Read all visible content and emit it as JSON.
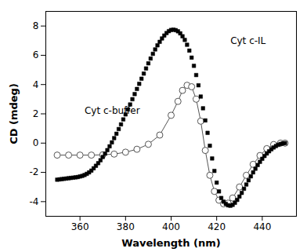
{
  "chart_data": {
    "type": "line",
    "xlabel": "Wavelength (nm)",
    "ylabel": "CD (mdeg)",
    "xlim": [
      345,
      455
    ],
    "ylim": [
      -5,
      9
    ],
    "xticks": [
      360,
      380,
      400,
      420,
      440
    ],
    "yticks": [
      -4,
      -2,
      0,
      2,
      4,
      6,
      8
    ],
    "grid": false,
    "series": [
      {
        "name": "Cyt c-IL",
        "type": "scatter",
        "color": "#000000",
        "marker": "square",
        "line_style": "none",
        "x": [
          350,
          351,
          352,
          353,
          354,
          355,
          356,
          357,
          358,
          359,
          360,
          361,
          362,
          363,
          364,
          365,
          366,
          367,
          368,
          369,
          370,
          371,
          372,
          373,
          374,
          375,
          376,
          377,
          378,
          379,
          380,
          381,
          382,
          383,
          384,
          385,
          386,
          387,
          388,
          389,
          390,
          391,
          392,
          393,
          394,
          395,
          396,
          397,
          398,
          399,
          400,
          401,
          402,
          403,
          404,
          405,
          406,
          407,
          408,
          409,
          410,
          411,
          412,
          413,
          414,
          415,
          416,
          417,
          418,
          419,
          420,
          421,
          422,
          423,
          424,
          425,
          426,
          427,
          428,
          429,
          430,
          431,
          432,
          433,
          434,
          435,
          436,
          437,
          438,
          439,
          440,
          441,
          442,
          443,
          444,
          445,
          446,
          447,
          448,
          449,
          450
        ],
        "values": [
          -2.5,
          -2.48,
          -2.46,
          -2.44,
          -2.42,
          -2.4,
          -2.38,
          -2.36,
          -2.34,
          -2.32,
          -2.28,
          -2.24,
          -2.18,
          -2.1,
          -2.0,
          -1.88,
          -1.72,
          -1.55,
          -1.37,
          -1.17,
          -0.95,
          -0.72,
          -0.48,
          -0.22,
          0.05,
          0.34,
          0.64,
          0.96,
          1.28,
          1.62,
          1.96,
          2.3,
          2.64,
          3.0,
          3.35,
          3.7,
          4.05,
          4.4,
          4.75,
          5.1,
          5.45,
          5.78,
          6.1,
          6.4,
          6.68,
          6.92,
          7.15,
          7.35,
          7.52,
          7.65,
          7.73,
          7.75,
          7.72,
          7.64,
          7.5,
          7.3,
          7.05,
          6.72,
          6.32,
          5.84,
          5.28,
          4.65,
          3.95,
          3.18,
          2.38,
          1.55,
          0.7,
          -0.18,
          -1.05,
          -1.9,
          -2.7,
          -3.3,
          -3.75,
          -4.0,
          -4.15,
          -4.25,
          -4.28,
          -4.22,
          -4.08,
          -3.88,
          -3.65,
          -3.4,
          -3.12,
          -2.83,
          -2.54,
          -2.27,
          -2.0,
          -1.75,
          -1.5,
          -1.28,
          -1.07,
          -0.88,
          -0.71,
          -0.56,
          -0.42,
          -0.3,
          -0.2,
          -0.12,
          -0.06,
          -0.02,
          0.0
        ]
      },
      {
        "name": "Cyt c-buffer",
        "type": "line",
        "color": "#555555",
        "marker": "circle-open",
        "line_style": "solid",
        "x": [
          350,
          355,
          360,
          365,
          370,
          375,
          380,
          385,
          390,
          395,
          400,
          403,
          405,
          407,
          409,
          411,
          413,
          415,
          417,
          419,
          421,
          423,
          425,
          427,
          430,
          433,
          436,
          439,
          442,
          445,
          448,
          450
        ],
        "values": [
          -0.82,
          -0.82,
          -0.82,
          -0.82,
          -0.8,
          -0.75,
          -0.62,
          -0.42,
          -0.08,
          0.55,
          1.9,
          2.85,
          3.6,
          3.95,
          3.85,
          3.0,
          1.5,
          -0.5,
          -2.2,
          -3.3,
          -3.9,
          -4.15,
          -4.1,
          -3.75,
          -3.0,
          -2.2,
          -1.45,
          -0.85,
          -0.38,
          -0.1,
          0.0,
          0.0
        ]
      }
    ],
    "annotations": [
      {
        "text": "Cyt c-IL",
        "x": 426,
        "y": 6.8
      },
      {
        "text": "Cyt c-buffer",
        "x": 362,
        "y": 2.0
      }
    ]
  }
}
